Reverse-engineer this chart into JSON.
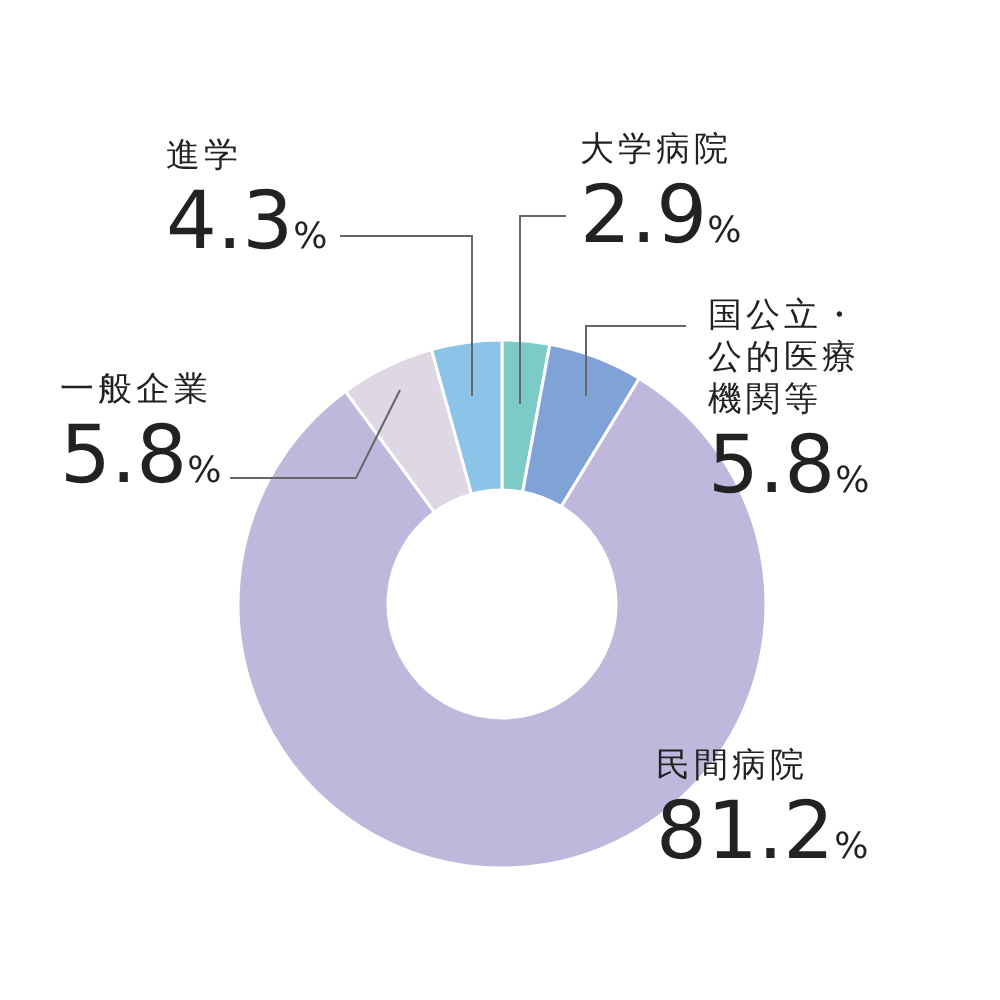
{
  "chart_data": {
    "type": "donut",
    "categories": [
      "大学病院",
      "国公立・公的医療機関等",
      "民間病院",
      "一般企業",
      "進学"
    ],
    "values": [
      2.9,
      5.8,
      81.2,
      5.8,
      4.3
    ],
    "colors": [
      "#7ccbc6",
      "#7fa3d6",
      "#c0b8dc",
      "#ddd8e3",
      "#8cc3e8"
    ],
    "value_labels": [
      "2.9%",
      "5.8%",
      "81.2%",
      "5.8%",
      "4.3%"
    ]
  }
}
